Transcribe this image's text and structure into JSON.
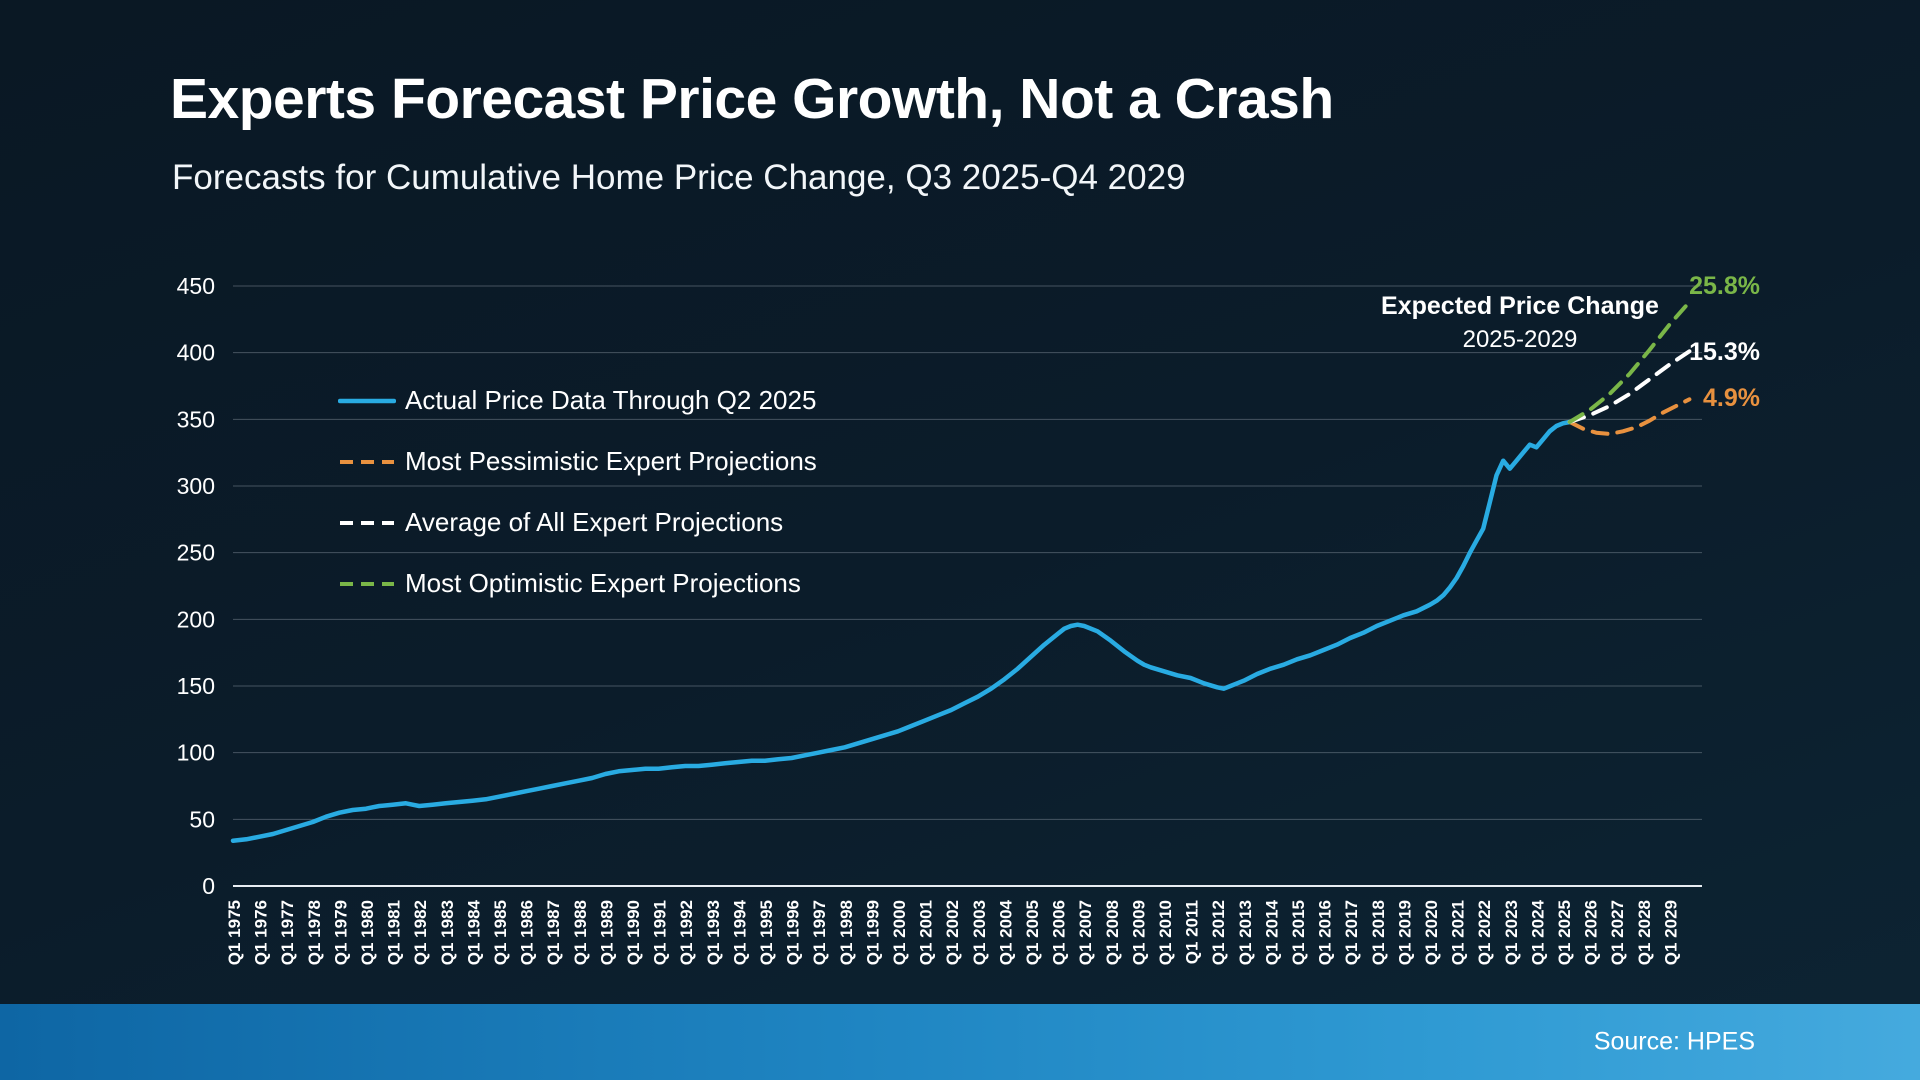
{
  "page": {
    "title": "Experts Forecast Price Growth, Not a Crash",
    "subtitle": "Forecasts for Cumulative Home Price Change, Q3 2025-Q4 2029",
    "source": "Source: HPES"
  },
  "colors": {
    "actual": "#29abe2",
    "pessimistic": "#e8913f",
    "average": "#ffffff",
    "optimistic": "#7ab648",
    "grid": "#8d9aa5",
    "axis": "#e8edf2",
    "text": "#ffffff"
  },
  "annotations": {
    "expected_title": "Expected Price Change",
    "expected_years": "2025-2029",
    "optimistic_pct": "25.8%",
    "average_pct": "15.3%",
    "pessimistic_pct": "4.9%"
  },
  "legend": [
    {
      "label": "Actual Price Data Through Q2 2025",
      "color": "#29abe2",
      "dashed": false
    },
    {
      "label": "Most Pessimistic Expert Projections",
      "color": "#e8913f",
      "dashed": true
    },
    {
      "label": "Average of All Expert Projections",
      "color": "#ffffff",
      "dashed": true
    },
    {
      "label": "Most Optimistic Expert Projections",
      "color": "#7ab648",
      "dashed": true
    }
  ],
  "chart_data": {
    "type": "line",
    "title": "Forecasts for Cumulative Home Price Change, Q3 2025-Q4 2029",
    "ylim": [
      0,
      450
    ],
    "yticks": [
      0,
      50,
      100,
      150,
      200,
      250,
      300,
      350,
      400,
      450
    ],
    "grid": true,
    "legend_position": "upper-left-inside",
    "x_labels": [
      "Q1 1975",
      "Q1 1976",
      "Q1 1977",
      "Q1 1978",
      "Q1 1979",
      "Q1 1980",
      "Q1 1981",
      "Q1 1982",
      "Q1 1983",
      "Q1 1984",
      "Q1 1985",
      "Q1 1986",
      "Q1 1987",
      "Q1 1988",
      "Q1 1989",
      "Q1 1990",
      "Q1 1991",
      "Q1 1992",
      "Q1 1993",
      "Q1 1994",
      "Q1 1995",
      "Q1 1996",
      "Q1 1997",
      "Q1 1998",
      "Q1 1999",
      "Q1 2000",
      "Q1 2001",
      "Q1 2002",
      "Q1 2003",
      "Q1 2004",
      "Q1 2005",
      "Q1 2006",
      "Q1 2007",
      "Q1 2008",
      "Q1 2009",
      "Q1 2010",
      "Q1 2011",
      "Q1 2012",
      "Q1 2013",
      "Q1 2014",
      "Q1 2015",
      "Q1 2016",
      "Q1 2017",
      "Q1 2018",
      "Q1 2019",
      "Q1 2020",
      "Q1 2021",
      "Q1 2022",
      "Q1 2023",
      "Q1 2024",
      "Q1 2025",
      "Q1 2026",
      "Q1 2027",
      "Q1 2028",
      "Q1 2029"
    ],
    "series": [
      {
        "name": "Actual Price Data Through Q2 2025",
        "color": "#29abe2",
        "dashed": false,
        "width": 4.5,
        "points": [
          [
            1975,
            34
          ],
          [
            1975.5,
            35
          ],
          [
            1976,
            37
          ],
          [
            1976.5,
            39
          ],
          [
            1977,
            42
          ],
          [
            1977.5,
            45
          ],
          [
            1978,
            48
          ],
          [
            1978.5,
            52
          ],
          [
            1979,
            55
          ],
          [
            1979.5,
            57
          ],
          [
            1980,
            58
          ],
          [
            1980.25,
            59
          ],
          [
            1980.5,
            60
          ],
          [
            1981,
            61
          ],
          [
            1981.5,
            62
          ],
          [
            1981.75,
            61
          ],
          [
            1982,
            60
          ],
          [
            1982.5,
            61
          ],
          [
            1983,
            62
          ],
          [
            1983.5,
            63
          ],
          [
            1984,
            64
          ],
          [
            1984.5,
            65
          ],
          [
            1985,
            67
          ],
          [
            1985.5,
            69
          ],
          [
            1986,
            71
          ],
          [
            1986.5,
            73
          ],
          [
            1987,
            75
          ],
          [
            1987.5,
            77
          ],
          [
            1988,
            79
          ],
          [
            1988.5,
            81
          ],
          [
            1989,
            84
          ],
          [
            1989.5,
            86
          ],
          [
            1990,
            87
          ],
          [
            1990.5,
            88
          ],
          [
            1991,
            88
          ],
          [
            1991.5,
            89
          ],
          [
            1992,
            90
          ],
          [
            1992.5,
            90
          ],
          [
            1993,
            91
          ],
          [
            1993.5,
            92
          ],
          [
            1994,
            93
          ],
          [
            1994.5,
            94
          ],
          [
            1995,
            94
          ],
          [
            1995.5,
            95
          ],
          [
            1996,
            96
          ],
          [
            1996.5,
            98
          ],
          [
            1997,
            100
          ],
          [
            1997.5,
            102
          ],
          [
            1998,
            104
          ],
          [
            1998.5,
            107
          ],
          [
            1999,
            110
          ],
          [
            1999.5,
            113
          ],
          [
            2000,
            116
          ],
          [
            2000.5,
            120
          ],
          [
            2001,
            124
          ],
          [
            2001.5,
            128
          ],
          [
            2002,
            132
          ],
          [
            2002.5,
            137
          ],
          [
            2003,
            142
          ],
          [
            2003.5,
            148
          ],
          [
            2004,
            155
          ],
          [
            2004.5,
            163
          ],
          [
            2005,
            172
          ],
          [
            2005.5,
            181
          ],
          [
            2006,
            189
          ],
          [
            2006.25,
            193
          ],
          [
            2006.5,
            195
          ],
          [
            2006.75,
            196
          ],
          [
            2007,
            195
          ],
          [
            2007.5,
            191
          ],
          [
            2008,
            184
          ],
          [
            2008.5,
            176
          ],
          [
            2009,
            169
          ],
          [
            2009.25,
            166
          ],
          [
            2009.5,
            164
          ],
          [
            2010,
            161
          ],
          [
            2010.5,
            158
          ],
          [
            2011,
            156
          ],
          [
            2011.5,
            152
          ],
          [
            2012,
            149
          ],
          [
            2012.25,
            148
          ],
          [
            2012.5,
            150
          ],
          [
            2012.75,
            152
          ],
          [
            2013,
            154
          ],
          [
            2013.5,
            159
          ],
          [
            2014,
            163
          ],
          [
            2014.5,
            166
          ],
          [
            2015,
            170
          ],
          [
            2015.5,
            173
          ],
          [
            2016,
            177
          ],
          [
            2016.5,
            181
          ],
          [
            2017,
            186
          ],
          [
            2017.5,
            190
          ],
          [
            2018,
            195
          ],
          [
            2018.5,
            199
          ],
          [
            2019,
            203
          ],
          [
            2019.5,
            206
          ],
          [
            2020,
            211
          ],
          [
            2020.25,
            214
          ],
          [
            2020.5,
            218
          ],
          [
            2020.75,
            224
          ],
          [
            2021,
            231
          ],
          [
            2021.25,
            240
          ],
          [
            2021.5,
            250
          ],
          [
            2021.75,
            259
          ],
          [
            2022,
            268
          ],
          [
            2022.25,
            288
          ],
          [
            2022.5,
            308
          ],
          [
            2022.75,
            319
          ],
          [
            2023,
            313
          ],
          [
            2023.25,
            319
          ],
          [
            2023.5,
            325
          ],
          [
            2023.75,
            331
          ],
          [
            2024,
            329
          ],
          [
            2024.25,
            335
          ],
          [
            2024.5,
            341
          ],
          [
            2024.75,
            345
          ],
          [
            2025,
            347
          ],
          [
            2025.25,
            348
          ]
        ]
      },
      {
        "name": "Most Pessimistic Expert Projections",
        "color": "#e8913f",
        "dashed": true,
        "width": 4,
        "points": [
          [
            2025.25,
            348
          ],
          [
            2025.75,
            343
          ],
          [
            2026.25,
            340
          ],
          [
            2026.75,
            339
          ],
          [
            2027.25,
            341
          ],
          [
            2027.75,
            344
          ],
          [
            2028.25,
            349
          ],
          [
            2028.75,
            355
          ],
          [
            2029.25,
            360
          ],
          [
            2029.75,
            365
          ]
        ]
      },
      {
        "name": "Average of All Expert Projections",
        "color": "#ffffff",
        "dashed": true,
        "width": 4,
        "points": [
          [
            2025.25,
            348
          ],
          [
            2026,
            353
          ],
          [
            2026.75,
            360
          ],
          [
            2027.5,
            369
          ],
          [
            2028.25,
            380
          ],
          [
            2029,
            391
          ],
          [
            2029.75,
            401
          ]
        ]
      },
      {
        "name": "Most Optimistic Expert Projections",
        "color": "#7ab648",
        "dashed": true,
        "width": 4,
        "points": [
          [
            2025.25,
            348
          ],
          [
            2026,
            357
          ],
          [
            2026.75,
            369
          ],
          [
            2027.5,
            384
          ],
          [
            2028.25,
            402
          ],
          [
            2029,
            421
          ],
          [
            2029.75,
            438
          ]
        ]
      }
    ]
  }
}
